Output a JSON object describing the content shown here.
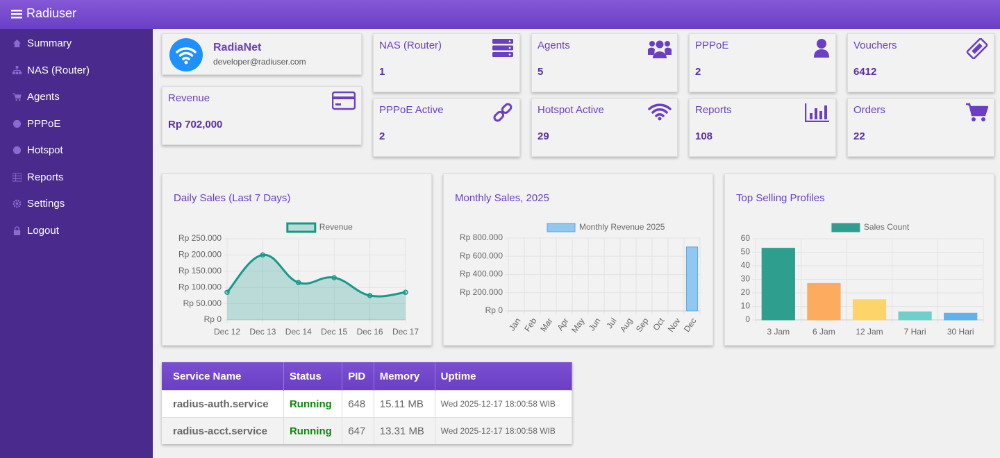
{
  "header": {
    "title": "Radiuser"
  },
  "sidebar": {
    "items": [
      "Summary",
      "NAS (Router)",
      "Agents",
      "PPPoE",
      "Hotspot",
      "Reports",
      "Settings",
      "Logout"
    ]
  },
  "profile": {
    "name": "RadiaNet",
    "email": "developer@radiuser.com"
  },
  "revenue": {
    "label": "Revenue",
    "value": "Rp 702,000"
  },
  "stats": [
    {
      "label": "NAS (Router)",
      "value": 1
    },
    {
      "label": "Agents",
      "value": 5
    },
    {
      "label": "PPPoE",
      "value": 2
    },
    {
      "label": "Vouchers",
      "value": 6412
    },
    {
      "label": "PPPoE Active",
      "value": 2
    },
    {
      "label": "Hotspot Active",
      "value": 29
    },
    {
      "label": "Reports",
      "value": 108
    },
    {
      "label": "Orders",
      "value": 22
    }
  ],
  "chart_data": [
    {
      "type": "line",
      "title": "Daily Sales (Last 7 Days)",
      "categories": [
        "Dec 12",
        "Dec 13",
        "Dec 14",
        "Dec 15",
        "Dec 16",
        "Dec 17"
      ],
      "series": [
        {
          "name": "Revenue",
          "color": "#16998a",
          "values": [
            85000,
            200000,
            115000,
            130000,
            75000,
            85000
          ]
        }
      ],
      "ylim": [
        0,
        250000
      ],
      "yticks": [
        {
          "value": 0,
          "label": "Rp 0"
        },
        {
          "value": 50000,
          "label": "Rp 50.000"
        },
        {
          "value": 100000,
          "label": "Rp 100.000"
        },
        {
          "value": 150000,
          "label": "Rp 150.000"
        },
        {
          "value": 200000,
          "label": "Rp 200.000"
        },
        {
          "value": 250000,
          "label": "Rp 250.000"
        }
      ],
      "grid": true,
      "legend": "top"
    },
    {
      "type": "bar",
      "title": "Monthly Sales, 2025",
      "categories": [
        "Jan",
        "Feb",
        "Mar",
        "Apr",
        "May",
        "Jun",
        "Jul",
        "Aug",
        "Sep",
        "Oct",
        "Nov",
        "Dec"
      ],
      "series": [
        {
          "name": "Monthly Revenue 2025",
          "color": "#90c8f0",
          "values": [
            0,
            0,
            0,
            0,
            0,
            0,
            0,
            0,
            0,
            0,
            0,
            702000
          ]
        }
      ],
      "ylim": [
        0,
        800000
      ],
      "yticks": [
        {
          "value": 0,
          "label": "Rp 0"
        },
        {
          "value": 200000,
          "label": "Rp 200.000"
        },
        {
          "value": 400000,
          "label": "Rp 400.000"
        },
        {
          "value": 600000,
          "label": "Rp 600.000"
        },
        {
          "value": 800000,
          "label": "Rp 800.000"
        }
      ],
      "grid": true,
      "legend": "top"
    },
    {
      "type": "bar",
      "title": "Top Selling Profiles",
      "categories": [
        "3 Jam",
        "6 Jam",
        "12 Jam",
        "7 Hari",
        "30 Hari"
      ],
      "series": [
        {
          "name": "Sales Count",
          "color": "#2e9e8f",
          "colors": [
            "#2e9e8f",
            "#fdac5f",
            "#fcd46a",
            "#6fcfcb",
            "#5db3ef"
          ],
          "values": [
            53,
            27,
            15,
            6,
            5
          ]
        }
      ],
      "ylim": [
        0,
        60
      ],
      "yticks": [
        0,
        10,
        20,
        30,
        40,
        50,
        60
      ],
      "grid": true,
      "legend": "top"
    }
  ],
  "table": {
    "headers": [
      "Service Name",
      "Status",
      "PID",
      "Memory",
      "Uptime"
    ],
    "rows": [
      [
        "radius-auth.service",
        "Running",
        648,
        "15.11 MB",
        "Wed 2025-12-17 18:00:58 WIB"
      ],
      [
        "radius-acct.service",
        "Running",
        647,
        "13.31 MB",
        "Wed 2025-12-17 18:00:58 WIB"
      ]
    ]
  }
}
